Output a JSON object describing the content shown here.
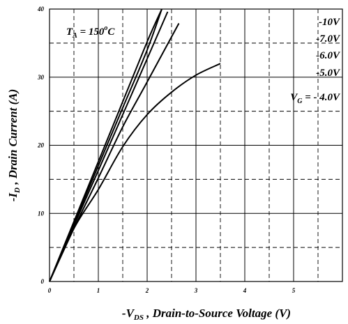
{
  "chart_data": {
    "type": "line",
    "title": "",
    "ylabel": {
      "prefix": "-I",
      "sub": "D",
      "suffix": " , Drain Current (A)"
    },
    "xlabel": {
      "prefix": "-V",
      "sub": "DS",
      "suffix": " , Drain-to-Source Voltage (V)"
    },
    "xlim": [
      0,
      6
    ],
    "ylim": [
      0,
      40
    ],
    "x_ticks": [
      0,
      1,
      2,
      3,
      4,
      5
    ],
    "y_ticks": [
      0,
      10,
      20,
      30,
      40
    ],
    "grid": true,
    "grid_solid_x": [
      1,
      2,
      3,
      4,
      5
    ],
    "grid_dashed_x": [
      0.5,
      1.5,
      2.5,
      3.5,
      4.5,
      5.5
    ],
    "grid_solid_y": [
      10,
      20,
      30
    ],
    "grid_dashed_y": [
      5,
      15,
      25,
      35
    ],
    "annotation": {
      "prefix": "T",
      "sub": "A",
      "middle": " = 150",
      "sup": "o",
      "suffix": "C"
    },
    "series": [
      {
        "name": "-10V",
        "x": [
          0,
          0.5,
          1.0,
          1.5,
          2.0,
          2.3
        ],
        "y": [
          0,
          8.8,
          17.6,
          26.4,
          35.2,
          40
        ]
      },
      {
        "name": "-7.0V",
        "x": [
          0,
          0.5,
          1.0,
          1.5,
          2.0,
          2.3
        ],
        "y": [
          0,
          8.5,
          17.0,
          25.5,
          34.0,
          40
        ]
      },
      {
        "name": "-6.0V",
        "x": [
          0,
          0.5,
          1.0,
          1.5,
          2.0,
          2.42
        ],
        "y": [
          0,
          8.2,
          16.3,
          24.5,
          32.7,
          39.6
        ]
      },
      {
        "name": "-5.0V",
        "x": [
          0,
          0.5,
          1.0,
          1.5,
          2.0,
          2.65
        ],
        "y": [
          0,
          7.8,
          15.2,
          22.7,
          29.3,
          37.9
        ]
      },
      {
        "name": "V G = - 4.0V",
        "x": [
          0,
          0.5,
          1.0,
          1.5,
          2.0,
          2.5,
          3.0,
          3.5
        ],
        "y": [
          0,
          7.8,
          13.5,
          19.8,
          24.5,
          27.8,
          30.3,
          32.0
        ]
      }
    ],
    "legend": {
      "placement": "top-right",
      "labels": [
        "-10V",
        "-7.0V",
        "-6.0V",
        "-5.0V"
      ],
      "last": {
        "prefix": "V",
        "sub": "G",
        "suffix": " = - 4.0V"
      }
    }
  }
}
